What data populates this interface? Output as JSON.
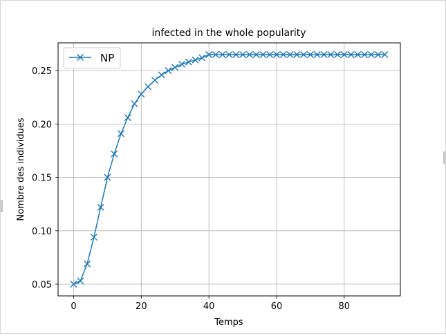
{
  "chart_data": {
    "type": "line",
    "title": "infected in the whole popularity",
    "xlabel": "Temps",
    "ylabel": "Nombre des individues",
    "xlim": [
      -4.6,
      96.6
    ],
    "ylim": [
      0.039,
      0.276
    ],
    "x_ticks": [
      0,
      20,
      40,
      60,
      80
    ],
    "x_tick_labels": [
      "0",
      "20",
      "40",
      "60",
      "80"
    ],
    "y_ticks": [
      0.05,
      0.1,
      0.15,
      0.2,
      0.25
    ],
    "y_tick_labels": [
      "0.05",
      "0.10",
      "0.15",
      "0.20",
      "0.25"
    ],
    "grid": true,
    "legend": {
      "position": "top-left"
    },
    "series": [
      {
        "name": "NP",
        "color": "#1f77b4",
        "marker": "x",
        "x": [
          0,
          2,
          4,
          6,
          8,
          10,
          12,
          14,
          16,
          18,
          20,
          22,
          24,
          26,
          28,
          30,
          32,
          34,
          36,
          38,
          40,
          42,
          44,
          46,
          48,
          50,
          52,
          54,
          56,
          58,
          60,
          62,
          64,
          66,
          68,
          70,
          72,
          74,
          76,
          78,
          80,
          82,
          84,
          86,
          88,
          90,
          92
        ],
        "y": [
          0.05,
          0.053,
          0.069,
          0.094,
          0.122,
          0.15,
          0.172,
          0.191,
          0.206,
          0.219,
          0.228,
          0.235,
          0.241,
          0.246,
          0.25,
          0.253,
          0.256,
          0.258,
          0.26,
          0.262,
          0.265,
          0.265,
          0.265,
          0.265,
          0.265,
          0.265,
          0.265,
          0.265,
          0.265,
          0.265,
          0.265,
          0.265,
          0.265,
          0.265,
          0.265,
          0.265,
          0.265,
          0.265,
          0.265,
          0.265,
          0.265,
          0.265,
          0.265,
          0.265,
          0.265,
          0.265,
          0.265
        ]
      }
    ]
  }
}
